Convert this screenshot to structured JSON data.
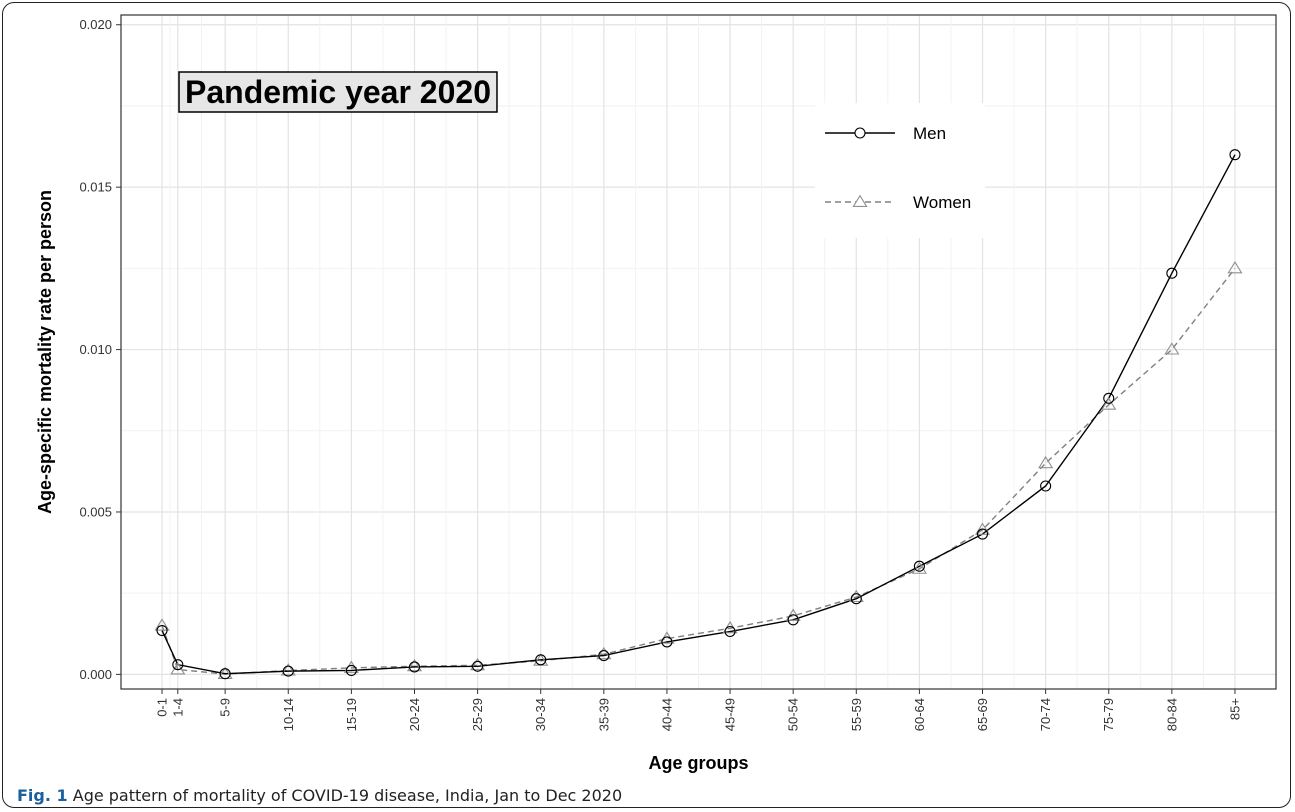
{
  "caption": {
    "label": "Fig. 1",
    "text": " Age pattern of mortality of COVID-19 disease, India, Jan to Dec 2020"
  },
  "chart_data": {
    "type": "line",
    "title": "Pandemic year 2020",
    "xlabel": "Age groups",
    "ylabel": "Age-specific mortality rate per person",
    "categories": [
      "0-1",
      "1-4",
      "5-9",
      "10-14",
      "15-19",
      "20-24",
      "25-29",
      "30-34",
      "35-39",
      "40-44",
      "45-49",
      "50-54",
      "55-59",
      "60-64",
      "65-69",
      "70-74",
      "75-79",
      "80-84",
      "85+"
    ],
    "x": [
      0,
      0.5,
      2,
      4,
      6,
      8,
      10,
      12,
      14,
      16,
      18,
      20,
      22,
      24,
      26,
      28,
      30,
      32,
      34
    ],
    "ylim": [
      -0.00045,
      0.0203
    ],
    "yticks": [
      0.0,
      0.005,
      0.01,
      0.015,
      0.02
    ],
    "ytick_labels": [
      "0.000",
      "0.005",
      "0.010",
      "0.015",
      "0.020"
    ],
    "grid": true,
    "legend_position": "top-center",
    "series": [
      {
        "name": "Men",
        "color": "#000000",
        "line": "solid",
        "marker": "circle",
        "values": [
          0.00135,
          0.0003,
          2e-05,
          0.0001,
          0.00012,
          0.00023,
          0.00025,
          0.00045,
          0.00058,
          0.001,
          0.00132,
          0.00168,
          0.00233,
          0.00333,
          0.00432,
          0.0058,
          0.0085,
          0.01235,
          0.016
        ]
      },
      {
        "name": "Women",
        "color": "#808080",
        "line": "dashed",
        "marker": "triangle",
        "values": [
          0.0015,
          0.00015,
          1e-05,
          0.00012,
          0.0002,
          0.00025,
          0.00028,
          0.00042,
          0.00062,
          0.0011,
          0.00142,
          0.0018,
          0.00238,
          0.00325,
          0.00445,
          0.0065,
          0.0083,
          0.01,
          0.0125
        ]
      }
    ]
  }
}
